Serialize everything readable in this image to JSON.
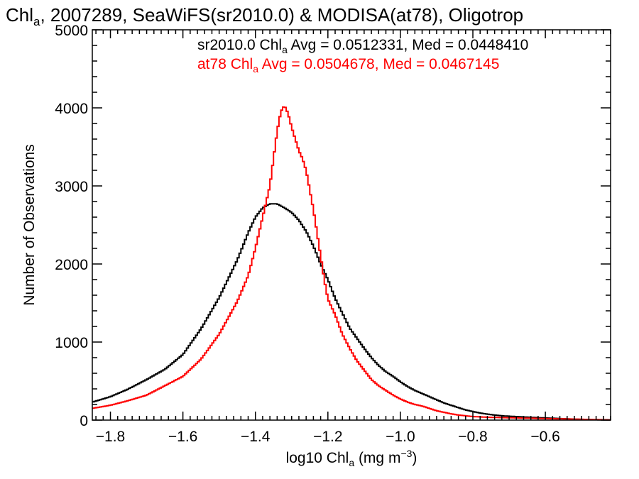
{
  "chart_data": {
    "type": "line",
    "step": true,
    "title": {
      "prefix": "Chl",
      "sub": "a",
      "rest": ", 2007289, SeaWiFS(sr2010.0) & MODISA(at78), Oligotrop"
    },
    "xlabel": {
      "prefix": "log10 Chl",
      "sub": "a",
      "unit_prefix": " (mg m",
      "unit_sup": "−3",
      "unit_suffix": ")"
    },
    "ylabel": "Number of Observations",
    "xlim": [
      -1.85,
      -0.42
    ],
    "ylim": [
      0,
      5000
    ],
    "x_ticks": [
      -1.8,
      -1.6,
      -1.4,
      -1.2,
      -1.0,
      -0.8,
      -0.6
    ],
    "x_tick_labels": [
      "−1.8",
      "−1.6",
      "−1.4",
      "−1.2",
      "−1.0",
      "−0.8",
      "−0.6"
    ],
    "y_ticks": [
      0,
      1000,
      2000,
      3000,
      4000,
      5000
    ],
    "y_tick_labels": [
      "0",
      "1000",
      "2000",
      "3000",
      "4000",
      "5000"
    ],
    "grid": false,
    "legend_placement": "top-right",
    "series": [
      {
        "key": "sr2010",
        "label_prefix": "sr2010.0 Chl",
        "label_sub": "a",
        "label_rest": " Avg = 0.0512331, Med = 0.0448410",
        "color": "#000000",
        "points": [
          [
            -1.85,
            230
          ],
          [
            -1.8,
            300
          ],
          [
            -1.75,
            400
          ],
          [
            -1.7,
            520
          ],
          [
            -1.65,
            650
          ],
          [
            -1.6,
            840
          ],
          [
            -1.55,
            1170
          ],
          [
            -1.5,
            1570
          ],
          [
            -1.45,
            2050
          ],
          [
            -1.42,
            2400
          ],
          [
            -1.4,
            2600
          ],
          [
            -1.38,
            2720
          ],
          [
            -1.36,
            2770
          ],
          [
            -1.34,
            2770
          ],
          [
            -1.32,
            2720
          ],
          [
            -1.3,
            2660
          ],
          [
            -1.28,
            2560
          ],
          [
            -1.26,
            2420
          ],
          [
            -1.24,
            2230
          ],
          [
            -1.22,
            2000
          ],
          [
            -1.2,
            1800
          ],
          [
            -1.18,
            1560
          ],
          [
            -1.16,
            1370
          ],
          [
            -1.14,
            1180
          ],
          [
            -1.12,
            1050
          ],
          [
            -1.1,
            920
          ],
          [
            -1.08,
            800
          ],
          [
            -1.06,
            700
          ],
          [
            -1.04,
            620
          ],
          [
            -1.02,
            560
          ],
          [
            -1.0,
            490
          ],
          [
            -0.98,
            430
          ],
          [
            -0.96,
            380
          ],
          [
            -0.94,
            340
          ],
          [
            -0.92,
            300
          ],
          [
            -0.9,
            260
          ],
          [
            -0.88,
            220
          ],
          [
            -0.86,
            190
          ],
          [
            -0.84,
            160
          ],
          [
            -0.82,
            130
          ],
          [
            -0.8,
            110
          ],
          [
            -0.78,
            90
          ],
          [
            -0.75,
            70
          ],
          [
            -0.72,
            55
          ],
          [
            -0.68,
            45
          ],
          [
            -0.64,
            35
          ],
          [
            -0.6,
            28
          ],
          [
            -0.56,
            20
          ],
          [
            -0.52,
            12
          ],
          [
            -0.47,
            5
          ],
          [
            -0.42,
            2
          ]
        ]
      },
      {
        "key": "at78",
        "label_prefix": "at78 Chl",
        "label_sub": "a",
        "label_rest": " Avg = 0.0504678, Med = 0.0467145",
        "color": "#ff0000",
        "points": [
          [
            -1.85,
            150
          ],
          [
            -1.8,
            190
          ],
          [
            -1.75,
            250
          ],
          [
            -1.7,
            320
          ],
          [
            -1.65,
            440
          ],
          [
            -1.6,
            560
          ],
          [
            -1.55,
            780
          ],
          [
            -1.5,
            1100
          ],
          [
            -1.45,
            1520
          ],
          [
            -1.42,
            1850
          ],
          [
            -1.4,
            2200
          ],
          [
            -1.38,
            2600
          ],
          [
            -1.36,
            3000
          ],
          [
            -1.35,
            3350
          ],
          [
            -1.34,
            3700
          ],
          [
            -1.33,
            3950
          ],
          [
            -1.32,
            4030
          ],
          [
            -1.31,
            3930
          ],
          [
            -1.3,
            3750
          ],
          [
            -1.29,
            3600
          ],
          [
            -1.28,
            3450
          ],
          [
            -1.27,
            3350
          ],
          [
            -1.26,
            3200
          ],
          [
            -1.25,
            2950
          ],
          [
            -1.24,
            2700
          ],
          [
            -1.23,
            2400
          ],
          [
            -1.22,
            2100
          ],
          [
            -1.21,
            1800
          ],
          [
            -1.2,
            1550
          ],
          [
            -1.18,
            1350
          ],
          [
            -1.16,
            1100
          ],
          [
            -1.14,
            920
          ],
          [
            -1.12,
            760
          ],
          [
            -1.1,
            640
          ],
          [
            -1.08,
            520
          ],
          [
            -1.06,
            440
          ],
          [
            -1.04,
            380
          ],
          [
            -1.02,
            320
          ],
          [
            -1.0,
            270
          ],
          [
            -0.98,
            230
          ],
          [
            -0.96,
            200
          ],
          [
            -0.94,
            180
          ],
          [
            -0.92,
            150
          ],
          [
            -0.9,
            120
          ],
          [
            -0.88,
            100
          ],
          [
            -0.86,
            80
          ],
          [
            -0.84,
            65
          ],
          [
            -0.82,
            55
          ],
          [
            -0.8,
            45
          ],
          [
            -0.75,
            35
          ],
          [
            -0.7,
            30
          ],
          [
            -0.65,
            25
          ],
          [
            -0.6,
            20
          ],
          [
            -0.55,
            15
          ],
          [
            -0.5,
            10
          ],
          [
            -0.42,
            3
          ]
        ]
      }
    ]
  }
}
